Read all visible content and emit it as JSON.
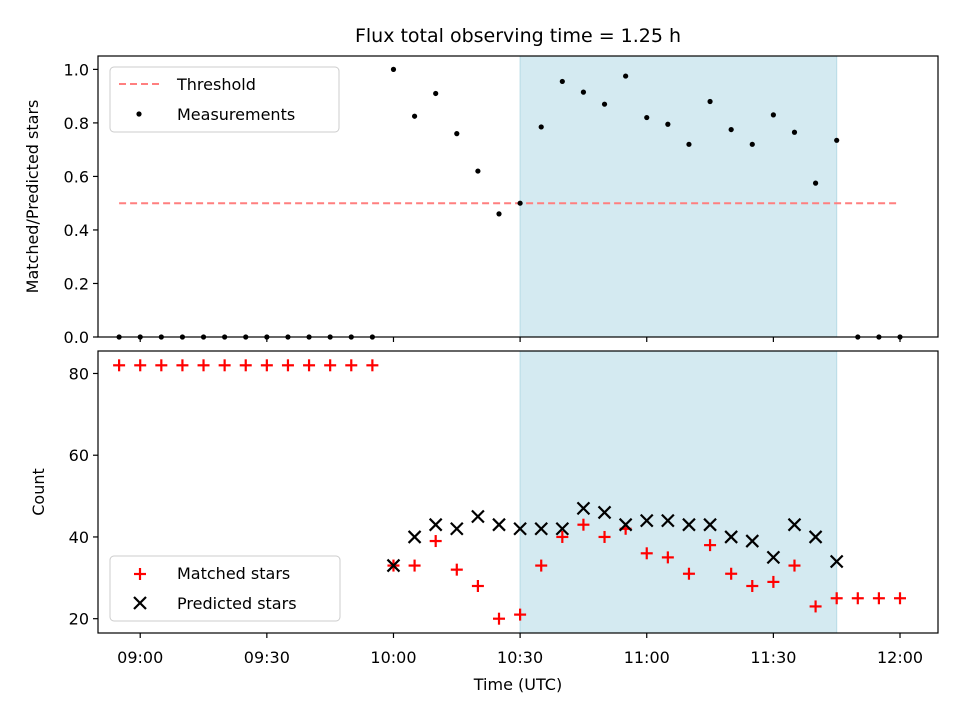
{
  "chart_data": {
    "type": "scatter",
    "title": "Flux total observing time = 1.25 h",
    "xlabel": "Time (UTC)",
    "x_tick_labels": [
      "09:00",
      "09:30",
      "10:00",
      "10:30",
      "11:00",
      "11:30",
      "12:00"
    ],
    "x_ticks": [
      "09:00",
      "09:30",
      "10:00",
      "10:30",
      "11:00",
      "11:30",
      "12:00"
    ],
    "xlim": [
      "08:50",
      "12:09"
    ],
    "shaded_interval": [
      "10:30",
      "11:45"
    ],
    "shade_color": "#d4eaf1",
    "panels": [
      {
        "ylabel": "Matched/Predicted stars",
        "ylim": [
          0,
          1.05
        ],
        "y_ticks": [
          0.0,
          0.2,
          0.4,
          0.6,
          0.8,
          1.0
        ],
        "y_tick_labels": [
          "0.0",
          "0.2",
          "0.4",
          "0.6",
          "0.8",
          "1.0"
        ],
        "legend_position": "upper-left",
        "threshold": {
          "name": "Threshold",
          "value": 0.5,
          "x_range": [
            "08:55",
            "12:00"
          ],
          "color": "#ff7f7f"
        },
        "series": [
          {
            "name": "Measurements",
            "marker": "dot",
            "color": "#000000",
            "x": [
              "08:55",
              "09:00",
              "09:05",
              "09:10",
              "09:15",
              "09:20",
              "09:25",
              "09:30",
              "09:35",
              "09:40",
              "09:45",
              "09:50",
              "09:55",
              "10:00",
              "10:05",
              "10:10",
              "10:15",
              "10:20",
              "10:25",
              "10:30",
              "10:35",
              "10:40",
              "10:45",
              "10:50",
              "10:55",
              "11:00",
              "11:05",
              "11:10",
              "11:15",
              "11:20",
              "11:25",
              "11:30",
              "11:35",
              "11:40",
              "11:45",
              "11:50",
              "11:55",
              "12:00"
            ],
            "y": [
              0,
              0,
              0,
              0,
              0,
              0,
              0,
              0,
              0,
              0,
              0,
              0,
              0,
              1.0,
              0.825,
              0.91,
              0.76,
              0.62,
              0.46,
              0.5,
              0.785,
              0.955,
              0.915,
              0.87,
              0.975,
              0.82,
              0.795,
              0.72,
              0.88,
              0.775,
              0.72,
              0.83,
              0.765,
              0.575,
              0.735,
              0,
              0,
              0
            ]
          }
        ]
      },
      {
        "ylabel": "Count",
        "ylim": [
          16.5,
          85.5
        ],
        "y_ticks": [
          20,
          40,
          60,
          80
        ],
        "y_tick_labels": [
          "20",
          "40",
          "60",
          "80"
        ],
        "legend_position": "lower-left",
        "series": [
          {
            "name": "Matched stars",
            "marker": "plus",
            "color": "#ff0000",
            "x": [
              "08:55",
              "09:00",
              "09:05",
              "09:10",
              "09:15",
              "09:20",
              "09:25",
              "09:30",
              "09:35",
              "09:40",
              "09:45",
              "09:50",
              "09:55",
              "10:00",
              "10:05",
              "10:10",
              "10:15",
              "10:20",
              "10:25",
              "10:30",
              "10:35",
              "10:40",
              "10:45",
              "10:50",
              "10:55",
              "11:00",
              "11:05",
              "11:10",
              "11:15",
              "11:20",
              "11:25",
              "11:30",
              "11:35",
              "11:40",
              "11:45",
              "11:50",
              "11:55",
              "12:00"
            ],
            "y": [
              82,
              82,
              82,
              82,
              82,
              82,
              82,
              82,
              82,
              82,
              82,
              82,
              82,
              33,
              33,
              39,
              32,
              28,
              20,
              21,
              33,
              40,
              43,
              40,
              42,
              36,
              35,
              31,
              38,
              31,
              28,
              29,
              33,
              23,
              25,
              25,
              25,
              25
            ]
          },
          {
            "name": "Predicted stars",
            "marker": "x",
            "color": "#000000",
            "x": [
              "10:00",
              "10:05",
              "10:10",
              "10:15",
              "10:20",
              "10:25",
              "10:30",
              "10:35",
              "10:40",
              "10:45",
              "10:50",
              "10:55",
              "11:00",
              "11:05",
              "11:10",
              "11:15",
              "11:20",
              "11:25",
              "11:30",
              "11:35",
              "11:40",
              "11:45"
            ],
            "y": [
              33,
              40,
              43,
              42,
              45,
              43,
              42,
              42,
              42,
              47,
              46,
              43,
              44,
              44,
              43,
              43,
              40,
              39,
              35,
              43,
              40,
              34
            ]
          }
        ]
      }
    ]
  }
}
